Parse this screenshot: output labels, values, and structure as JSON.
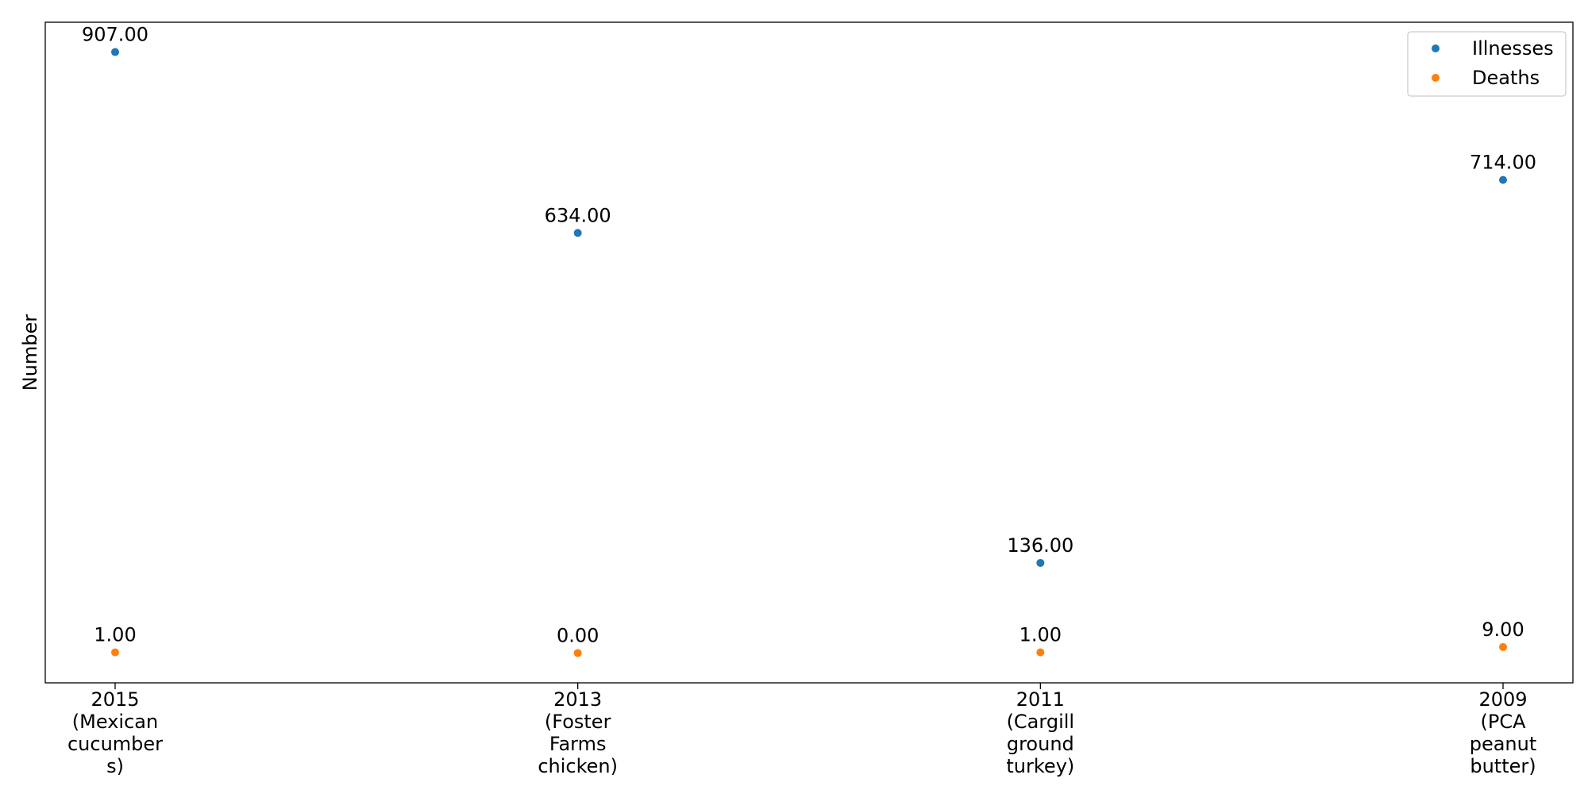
{
  "chart_data": {
    "type": "scatter",
    "title": "",
    "xlabel": "",
    "ylabel": "Number",
    "categories": [
      [
        "2015",
        "(Mexican",
        "cucumber",
        "s)"
      ],
      [
        "2013",
        "(Foster",
        "Farms",
        "chicken)"
      ],
      [
        "2011",
        "(Cargill",
        "ground",
        "turkey)"
      ],
      [
        "2009",
        "(PCA",
        "peanut",
        "butter)"
      ]
    ],
    "series": [
      {
        "name": "Illnesses",
        "color": "#1f77b4",
        "values": [
          907,
          634,
          136,
          714
        ],
        "labels": [
          "907.00",
          "634.00",
          "136.00",
          "714.00"
        ]
      },
      {
        "name": "Deaths",
        "color": "#ff7f0e",
        "values": [
          1,
          0,
          1,
          9
        ],
        "labels": [
          "1.00",
          "0.00",
          "1.00",
          "9.00"
        ]
      }
    ],
    "ylim": [
      -45,
      952
    ],
    "grid": false,
    "y_ticks_shown": false,
    "legend": "top-right"
  }
}
